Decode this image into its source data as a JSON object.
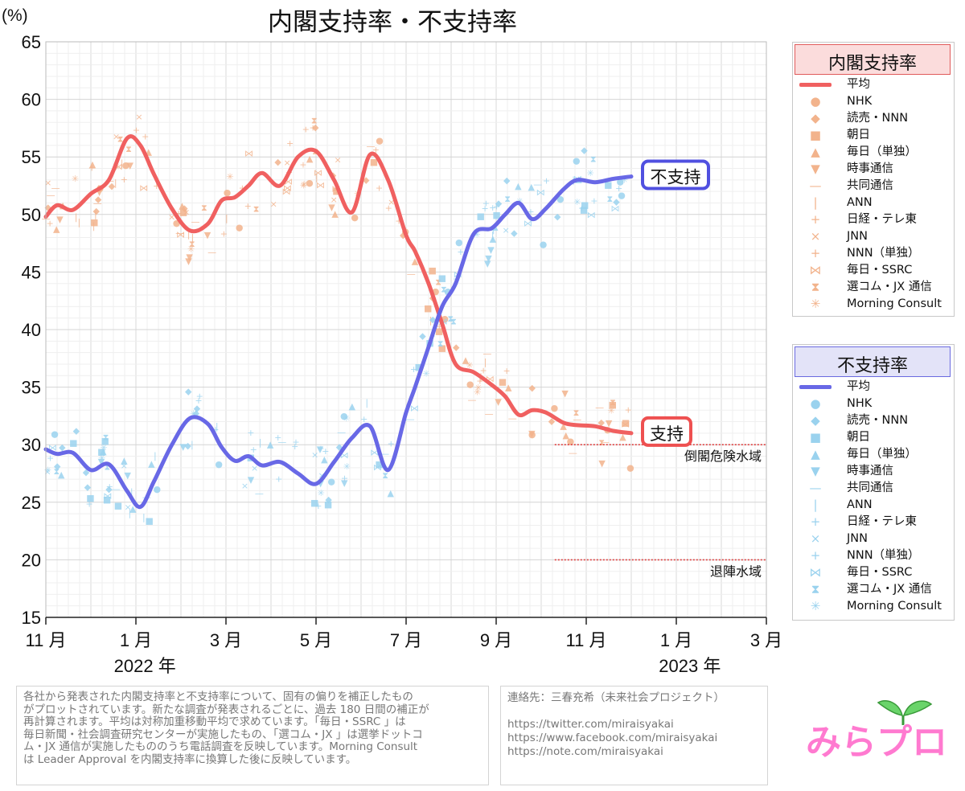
{
  "chart_data": {
    "type": "line",
    "title": "内閣支持率・不支持率",
    "ylabel": "(%)",
    "ylim": [
      15,
      65
    ],
    "yticks": [
      15,
      20,
      25,
      30,
      35,
      40,
      45,
      50,
      55,
      60,
      65
    ],
    "xlim": [
      0,
      16
    ],
    "xticks": [
      {
        "pos": 0,
        "label": "11 月"
      },
      {
        "pos": 2,
        "label": "1 月"
      },
      {
        "pos": 4,
        "label": "3 月"
      },
      {
        "pos": 6,
        "label": "5 月"
      },
      {
        "pos": 8,
        "label": "7 月"
      },
      {
        "pos": 10,
        "label": "9 月"
      },
      {
        "pos": 12,
        "label": "11 月"
      },
      {
        "pos": 14,
        "label": "1 月"
      },
      {
        "pos": 16,
        "label": "3 月"
      }
    ],
    "year_labels": [
      {
        "pos": 2.2,
        "label": "2022 年"
      },
      {
        "pos": 14.3,
        "label": "2023 年"
      }
    ],
    "series": [
      {
        "name": "支持",
        "color": "#f06060",
        "x": [
          0,
          0.25,
          0.6,
          1.0,
          1.4,
          1.8,
          2.1,
          2.4,
          2.8,
          3.2,
          3.6,
          3.9,
          4.2,
          4.5,
          4.8,
          5.2,
          5.6,
          6.0,
          6.4,
          6.8,
          7.2,
          7.6,
          8.0,
          8.2,
          8.5,
          8.8,
          9.1,
          9.5,
          9.9,
          10.2,
          10.5,
          10.8,
          11.1,
          11.5,
          11.8,
          12.2,
          12.6,
          13.0
        ],
        "values": [
          49.8,
          50.8,
          50.4,
          51.8,
          53.0,
          56.6,
          56.0,
          53.5,
          50.5,
          48.6,
          49.2,
          51.2,
          51.5,
          52.5,
          53.6,
          52.5,
          55.0,
          55.5,
          53.0,
          50.2,
          55.2,
          53.0,
          48.2,
          46.8,
          44.0,
          40.5,
          37.0,
          36.3,
          35.2,
          34.2,
          32.6,
          33.0,
          32.8,
          31.9,
          31.7,
          31.6,
          31.2,
          31.0
        ]
      },
      {
        "name": "不支持",
        "color": "#6868e6",
        "x": [
          0,
          0.25,
          0.6,
          1.0,
          1.4,
          1.8,
          2.1,
          2.4,
          2.8,
          3.2,
          3.6,
          3.9,
          4.2,
          4.5,
          4.8,
          5.2,
          5.6,
          6.0,
          6.4,
          6.8,
          7.2,
          7.6,
          8.0,
          8.2,
          8.5,
          8.8,
          9.1,
          9.5,
          9.9,
          10.2,
          10.5,
          10.8,
          11.1,
          11.5,
          11.8,
          12.2,
          12.6,
          13.0
        ],
        "values": [
          29.6,
          29.2,
          29.3,
          27.8,
          28.3,
          26.0,
          24.6,
          26.8,
          30.0,
          32.3,
          31.8,
          29.8,
          28.6,
          29.0,
          28.2,
          28.5,
          27.5,
          26.6,
          28.5,
          30.6,
          31.6,
          27.8,
          32.8,
          35.0,
          38.5,
          42.0,
          44.0,
          48.3,
          48.8,
          50.0,
          51.0,
          49.6,
          50.5,
          52.2,
          53.0,
          52.8,
          53.1,
          53.3
        ]
      }
    ],
    "series_labels": [
      {
        "series": "不支持",
        "text": "不支持",
        "color": "#5050e0"
      },
      {
        "series": "支持",
        "text": "支持",
        "color": "#ee5050"
      }
    ],
    "reference_lines": [
      {
        "value": 30,
        "label": "倒閣危険水域",
        "color": "#e04040"
      },
      {
        "value": 20,
        "label": "退陣水域",
        "color": "#e04040"
      }
    ]
  },
  "legend_support": {
    "title": "内閣支持率",
    "title_bg": "#fbdcdc",
    "title_border": "#e05a5a",
    "color": "#f2b38c",
    "items": [
      {
        "label": "平均",
        "icon": "line"
      },
      {
        "label": "NHK",
        "icon": "●"
      },
      {
        "label": "読売・NNN",
        "icon": "◆"
      },
      {
        "label": "朝日",
        "icon": "■"
      },
      {
        "label": "毎日（単独）",
        "icon": "▲"
      },
      {
        "label": "時事通信",
        "icon": "▼"
      },
      {
        "label": "共同通信",
        "icon": "—"
      },
      {
        "label": "ANN",
        "icon": "|"
      },
      {
        "label": "日経・テレ東",
        "icon": "+"
      },
      {
        "label": "JNN",
        "icon": "×"
      },
      {
        "label": "NNN（単独）",
        "icon": "+"
      },
      {
        "label": "毎日・SSRC",
        "icon": "⋈"
      },
      {
        "label": "選コム・JX 通信",
        "icon": "⧗"
      },
      {
        "label": "Morning Consult",
        "icon": "✳"
      }
    ]
  },
  "legend_oppose": {
    "title": "不支持率",
    "title_bg": "#e3e3f8",
    "title_border": "#6a6ae0",
    "color": "#9ad2ee",
    "items": [
      {
        "label": "平均",
        "icon": "line"
      },
      {
        "label": "NHK",
        "icon": "●"
      },
      {
        "label": "読売・NNN",
        "icon": "◆"
      },
      {
        "label": "朝日",
        "icon": "■"
      },
      {
        "label": "毎日（単独）",
        "icon": "▲"
      },
      {
        "label": "時事通信",
        "icon": "▼"
      },
      {
        "label": "共同通信",
        "icon": "—"
      },
      {
        "label": "ANN",
        "icon": "|"
      },
      {
        "label": "日経・テレ東",
        "icon": "+"
      },
      {
        "label": "JNN",
        "icon": "×"
      },
      {
        "label": "NNN（単独）",
        "icon": "+"
      },
      {
        "label": "毎日・SSRC",
        "icon": "⋈"
      },
      {
        "label": "選コム・JX 通信",
        "icon": "⧗"
      },
      {
        "label": "Morning Consult",
        "icon": "✳"
      }
    ]
  },
  "note": {
    "lines": [
      "各社から発表された内閣支持率と不支持率について、固有の偏りを補正したもの",
      "がプロットされています。新たな調査が発表されるごとに、過去 180 日間の補正が",
      "再計算されます。平均は対称加重移動平均で求めています。「毎日・SSRC 」は",
      "毎日新聞・社会調査研究センターが実施したもの、「選コム・JX 」は選挙ドットコ",
      "ム・JX 通信が実施したもののうち電話調査を反映しています。Morning Consult",
      "は Leader Approval を内閣支持率に換算した後に反映しています。"
    ]
  },
  "contact": {
    "title": "連絡先：三春充希（未来社会プロジェクト）",
    "links": [
      "https://twitter.com/miraisyakai",
      "https://www.facebook.com/miraisyakai",
      "https://note.com/miraisyakai"
    ]
  },
  "logo": {
    "text": "みらプロ",
    "colors": [
      "#ff7ad0",
      "#ffe05a",
      "#6ad46a"
    ]
  }
}
